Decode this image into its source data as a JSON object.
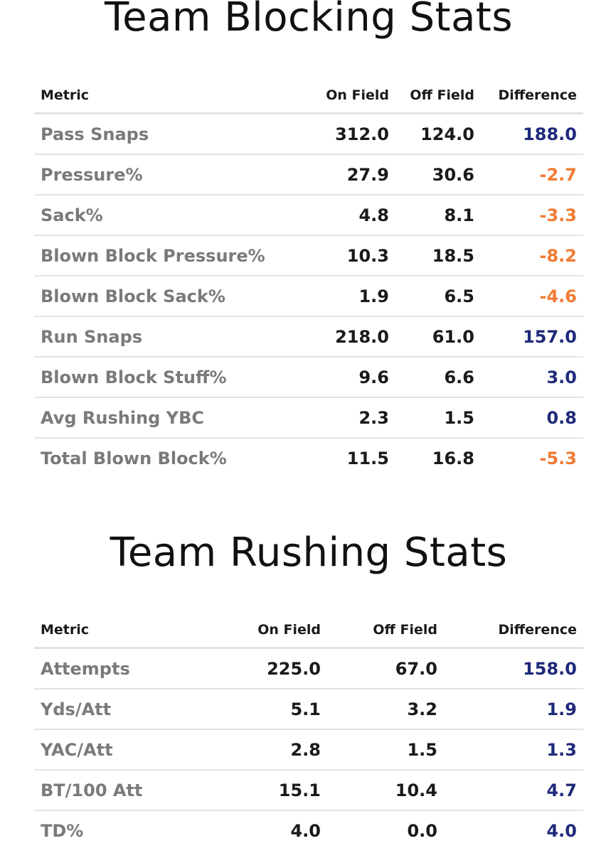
{
  "blocking": {
    "title": "Team Blocking Stats",
    "headers": {
      "metric": "Metric",
      "on_field": "On Field",
      "off_field": "Off Field",
      "difference": "Difference"
    },
    "rows": [
      {
        "metric": "Pass Snaps",
        "on_field": "312.0",
        "off_field": "124.0",
        "difference": "188.0",
        "sign": "pos"
      },
      {
        "metric": "Pressure%",
        "on_field": "27.9",
        "off_field": "30.6",
        "difference": "-2.7",
        "sign": "neg"
      },
      {
        "metric": "Sack%",
        "on_field": "4.8",
        "off_field": "8.1",
        "difference": "-3.3",
        "sign": "neg"
      },
      {
        "metric": "Blown Block Pressure%",
        "on_field": "10.3",
        "off_field": "18.5",
        "difference": "-8.2",
        "sign": "neg"
      },
      {
        "metric": "Blown Block Sack%",
        "on_field": "1.9",
        "off_field": "6.5",
        "difference": "-4.6",
        "sign": "neg"
      },
      {
        "metric": "Run Snaps",
        "on_field": "218.0",
        "off_field": "61.0",
        "difference": "157.0",
        "sign": "pos"
      },
      {
        "metric": "Blown Block Stuff%",
        "on_field": "9.6",
        "off_field": "6.6",
        "difference": "3.0",
        "sign": "pos"
      },
      {
        "metric": "Avg Rushing YBC",
        "on_field": "2.3",
        "off_field": "1.5",
        "difference": "0.8",
        "sign": "pos"
      },
      {
        "metric": "Total Blown Block%",
        "on_field": "11.5",
        "off_field": "16.8",
        "difference": "-5.3",
        "sign": "neg"
      }
    ]
  },
  "rushing": {
    "title": "Team Rushing Stats",
    "headers": {
      "metric": "Metric",
      "on_field": "On Field",
      "off_field": "Off Field",
      "difference": "Difference"
    },
    "rows": [
      {
        "metric": "Attempts",
        "on_field": "225.0",
        "off_field": "67.0",
        "difference": "158.0",
        "sign": "pos"
      },
      {
        "metric": "Yds/Att",
        "on_field": "5.1",
        "off_field": "3.2",
        "difference": "1.9",
        "sign": "pos"
      },
      {
        "metric": "YAC/Att",
        "on_field": "2.8",
        "off_field": "1.5",
        "difference": "1.3",
        "sign": "pos"
      },
      {
        "metric": "BT/100 Att",
        "on_field": "15.1",
        "off_field": "10.4",
        "difference": "4.7",
        "sign": "pos"
      },
      {
        "metric": "TD%",
        "on_field": "4.0",
        "off_field": "0.0",
        "difference": "4.0",
        "sign": "pos"
      }
    ]
  },
  "colors": {
    "positive": "#1f2a7a",
    "negative": "#f07b32",
    "metric_label": "#7a7a7a",
    "value": "#1a1a1a"
  }
}
